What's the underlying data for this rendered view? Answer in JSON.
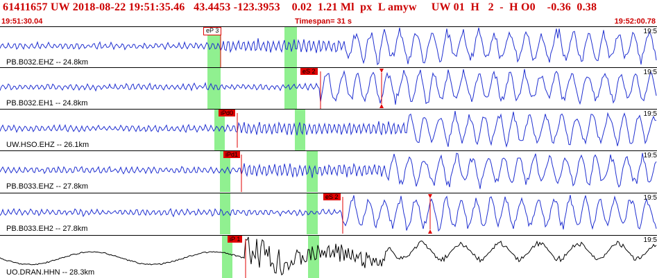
{
  "header": {
    "event_line": "61411657 UW 2018-08-22 19:51:35.46   43.4453 -123.3953    0.02  1.21 Ml  px  L amyw     UW 01  H   2  -  H O0    -0.36  0.38",
    "start_time": "19:51:30.04",
    "timespan": "Timespan=  31 s",
    "end_time": "19:52:00.78"
  },
  "colors": {
    "trace": "#1f2fd0",
    "trace_last": "#000000",
    "pick": "#e00000",
    "window": "#90f090",
    "header_text": "#cc0000"
  },
  "panels": [
    {
      "label": "PB.B032.EHZ -- 24.8km",
      "time_tick": "19:5",
      "pick_label": "eP 3",
      "pick_style": "outlined"
    },
    {
      "label": "PB.B032.EH1 -- 24.8km",
      "time_tick": "19:5",
      "pick_label": "eS 2",
      "pick_style": "filled"
    },
    {
      "label": "UW.HSO.EHZ -- 26.1km",
      "time_tick": "19:5",
      "pick_label": "iPd0",
      "pick_style": "filled"
    },
    {
      "label": "PB.B033.EHZ -- 27.8km",
      "time_tick": "19:5",
      "pick_label": "iPd1",
      "pick_style": "filled"
    },
    {
      "label": "PB.B033.EH2 -- 27.8km",
      "time_tick": "19:5",
      "pick_label": "eS 2",
      "pick_style": "filled"
    },
    {
      "label": "UO.DRAN.HHN -- 28.3km",
      "time_tick": "19:5",
      "pick_label": "iP 1",
      "pick_style": "filled"
    }
  ]
}
